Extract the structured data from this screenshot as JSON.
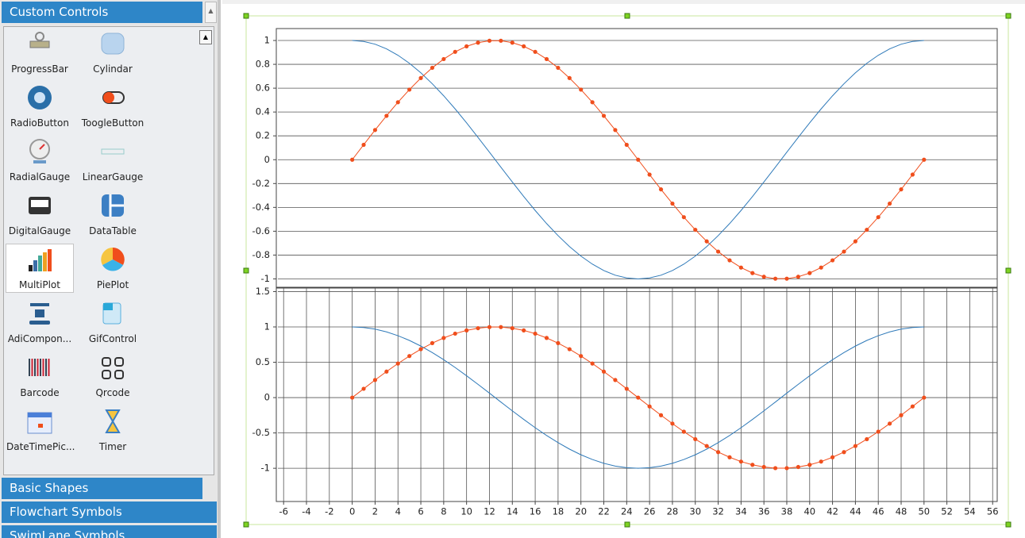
{
  "panel": {
    "header": "Custom Controls",
    "items": [
      {
        "label": "ProgressBar"
      },
      {
        "label": "Cylindar"
      },
      {
        "label": "RadioButton"
      },
      {
        "label": "ToogleButton"
      },
      {
        "label": "RadialGauge"
      },
      {
        "label": "LinearGauge"
      },
      {
        "label": "DigitalGauge"
      },
      {
        "label": "DataTable"
      },
      {
        "label": "MultiPlot"
      },
      {
        "label": "PiePlot"
      },
      {
        "label": "AdiCompon..."
      },
      {
        "label": "GifControl"
      },
      {
        "label": "Barcode"
      },
      {
        "label": "Qrcode"
      },
      {
        "label": "DateTimePic..."
      },
      {
        "label": "Timer"
      }
    ],
    "sections": [
      "Basic Shapes",
      "Flowchart Symbols",
      "SwimLane Symbols"
    ]
  },
  "chart_data": [
    {
      "type": "line",
      "xlim": [
        -6.5,
        56.4
      ],
      "ylim": [
        -1.07,
        1.1
      ],
      "yticks": [
        -1,
        -0.8,
        -0.6,
        -0.4,
        -0.2,
        0,
        0.2,
        0.4,
        0.6,
        0.8,
        1
      ],
      "ygrid": true,
      "xgrid": false,
      "x": [
        0,
        1,
        2,
        3,
        4,
        5,
        6,
        7,
        8,
        9,
        10,
        11,
        12,
        13,
        14,
        15,
        16,
        17,
        18,
        19,
        20,
        21,
        22,
        23,
        24,
        25,
        26,
        27,
        28,
        29,
        30,
        31,
        32,
        33,
        34,
        35,
        36,
        37,
        38,
        39,
        40,
        41,
        42,
        43,
        44,
        45,
        46,
        47,
        48,
        49,
        50
      ],
      "series": [
        {
          "color": "#2f7ab9",
          "marker": false,
          "values": [
            1,
            0.992,
            0.969,
            0.93,
            0.876,
            0.809,
            0.729,
            0.637,
            0.536,
            0.426,
            0.309,
            0.187,
            0.063,
            -0.063,
            -0.187,
            -0.309,
            -0.426,
            -0.536,
            -0.637,
            -0.729,
            -0.809,
            -0.876,
            -0.93,
            -0.969,
            -0.992,
            -1,
            -0.992,
            -0.969,
            -0.93,
            -0.876,
            -0.809,
            -0.729,
            -0.637,
            -0.536,
            -0.426,
            -0.309,
            -0.187,
            -0.063,
            0.063,
            0.187,
            0.309,
            0.426,
            0.536,
            0.637,
            0.729,
            0.809,
            0.876,
            0.93,
            0.969,
            0.992,
            1
          ]
        },
        {
          "color": "#f04e1c",
          "marker": true,
          "values": [
            0,
            0.125,
            0.249,
            0.368,
            0.482,
            0.588,
            0.685,
            0.771,
            0.844,
            0.905,
            0.951,
            0.982,
            0.998,
            0.998,
            0.982,
            0.951,
            0.905,
            0.844,
            0.771,
            0.685,
            0.588,
            0.482,
            0.368,
            0.249,
            0.125,
            0,
            -0.125,
            -0.249,
            -0.368,
            -0.482,
            -0.588,
            -0.685,
            -0.771,
            -0.844,
            -0.905,
            -0.951,
            -0.982,
            -0.998,
            -0.998,
            -0.982,
            -0.951,
            -0.905,
            -0.844,
            -0.771,
            -0.685,
            -0.588,
            -0.482,
            -0.368,
            -0.249,
            -0.125,
            0
          ]
        }
      ]
    },
    {
      "type": "line",
      "xlim": [
        -6.5,
        56.4
      ],
      "ylim": [
        -1.47,
        1.55
      ],
      "yticks": [
        -1,
        -0.5,
        0,
        0.5,
        1,
        1.5
      ],
      "xticks": [
        -6,
        -4,
        -2,
        0,
        2,
        4,
        6,
        8,
        10,
        12,
        14,
        16,
        18,
        20,
        22,
        24,
        26,
        28,
        30,
        32,
        34,
        36,
        38,
        40,
        42,
        44,
        46,
        48,
        50,
        52,
        54,
        56
      ],
      "ygrid": true,
      "xgrid": true,
      "x": [
        0,
        1,
        2,
        3,
        4,
        5,
        6,
        7,
        8,
        9,
        10,
        11,
        12,
        13,
        14,
        15,
        16,
        17,
        18,
        19,
        20,
        21,
        22,
        23,
        24,
        25,
        26,
        27,
        28,
        29,
        30,
        31,
        32,
        33,
        34,
        35,
        36,
        37,
        38,
        39,
        40,
        41,
        42,
        43,
        44,
        45,
        46,
        47,
        48,
        49,
        50
      ],
      "series": [
        {
          "color": "#2f7ab9",
          "marker": false,
          "values": [
            1,
            0.992,
            0.969,
            0.93,
            0.876,
            0.809,
            0.729,
            0.637,
            0.536,
            0.426,
            0.309,
            0.187,
            0.063,
            -0.063,
            -0.187,
            -0.309,
            -0.426,
            -0.536,
            -0.637,
            -0.729,
            -0.809,
            -0.876,
            -0.93,
            -0.969,
            -0.992,
            -1,
            -0.992,
            -0.969,
            -0.93,
            -0.876,
            -0.809,
            -0.729,
            -0.637,
            -0.536,
            -0.426,
            -0.309,
            -0.187,
            -0.063,
            0.063,
            0.187,
            0.309,
            0.426,
            0.536,
            0.637,
            0.729,
            0.809,
            0.876,
            0.93,
            0.969,
            0.992,
            1
          ]
        },
        {
          "color": "#f04e1c",
          "marker": true,
          "values": [
            0,
            0.125,
            0.249,
            0.368,
            0.482,
            0.588,
            0.685,
            0.771,
            0.844,
            0.905,
            0.951,
            0.982,
            0.998,
            0.998,
            0.982,
            0.951,
            0.905,
            0.844,
            0.771,
            0.685,
            0.588,
            0.482,
            0.368,
            0.249,
            0.125,
            0,
            -0.125,
            -0.249,
            -0.368,
            -0.482,
            -0.588,
            -0.685,
            -0.771,
            -0.844,
            -0.905,
            -0.951,
            -0.982,
            -0.998,
            -0.998,
            -0.982,
            -0.951,
            -0.905,
            -0.844,
            -0.771,
            -0.685,
            -0.588,
            -0.482,
            -0.368,
            -0.249,
            -0.125,
            0
          ]
        }
      ]
    }
  ]
}
